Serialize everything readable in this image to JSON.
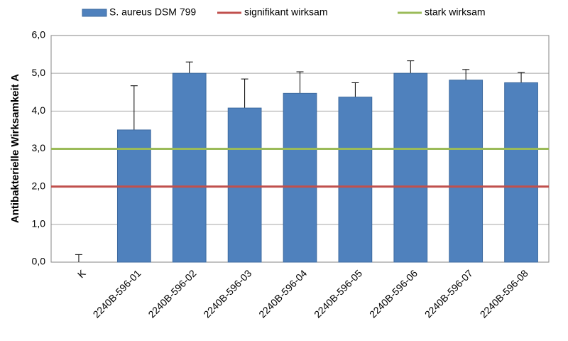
{
  "chart_data": {
    "type": "bar",
    "y_label": "Antibakterielle Wirksamkeit A",
    "categories": [
      "K",
      "2240B-596-01",
      "2240B-596-02",
      "2240B-596-03",
      "2240B-596-04",
      "2240B-596-05",
      "2240B-596-06",
      "2240B-596-07",
      "2240B-596-08"
    ],
    "series": [
      {
        "name": "S. aureus DSM 799",
        "color": "#4f81bd",
        "values": [
          0,
          3.5,
          5.0,
          4.08,
          4.47,
          4.37,
          5.0,
          4.82,
          4.75
        ],
        "errors": [
          0.2,
          1.17,
          0.3,
          0.77,
          0.57,
          0.38,
          0.33,
          0.28,
          0.27
        ]
      }
    ],
    "reference_lines": [
      {
        "name": "signifikant wirksam",
        "color": "#c0504d",
        "value": 2
      },
      {
        "name": "stark wirksam",
        "color": "#9bbb59",
        "value": 3
      }
    ],
    "ylim": [
      0,
      6
    ],
    "yticks": [
      {
        "value": 0,
        "label": "0,0"
      },
      {
        "value": 1,
        "label": "1,0"
      },
      {
        "value": 2,
        "label": "2,0"
      },
      {
        "value": 3,
        "label": "3,0"
      },
      {
        "value": 4,
        "label": "4,0"
      },
      {
        "value": 5,
        "label": "5,0"
      },
      {
        "value": 6,
        "label": "6,0"
      }
    ],
    "grid": true
  }
}
